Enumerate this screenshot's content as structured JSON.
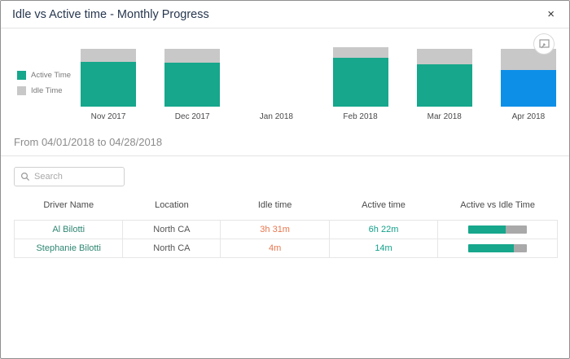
{
  "window": {
    "title": "Idle vs Active time - Monthly Progress",
    "close_glyph": "×"
  },
  "chart_data": {
    "type": "bar",
    "stacked": true,
    "categories": [
      "Nov 2017",
      "Dec 2017",
      "Jan 2018",
      "Feb 2018",
      "Mar 2018",
      "Apr 2018"
    ],
    "series": [
      {
        "name": "Active Time",
        "color": "#16a78c",
        "values": [
          55,
          54,
          0,
          60,
          52,
          45
        ]
      },
      {
        "name": "Idle Time",
        "color": "#c8c8c8",
        "values": [
          16,
          17,
          0,
          13,
          19,
          26
        ]
      }
    ],
    "unit": "relative-height",
    "note": "Jan 2018 has no bar; Apr 2018 active segment highlighted as selected",
    "selected_index": 5,
    "selected_color": "#0d8fe8",
    "legend_position": "left",
    "grid": false
  },
  "filter": {
    "date_range": "From 04/01/2018 to 04/28/2018"
  },
  "search": {
    "placeholder": "Search"
  },
  "table": {
    "columns": [
      "Driver Name",
      "Location",
      "Idle time",
      "Active time",
      "Active vs Idle Time"
    ],
    "rows": [
      {
        "driver": "Al Bilotti",
        "location": "North CA",
        "idle": "3h 31m",
        "active": "6h 22m",
        "active_pct": 64
      },
      {
        "driver": "Stephanie Bilotti",
        "location": "North CA",
        "idle": "4m",
        "active": "14m",
        "active_pct": 78
      }
    ]
  },
  "colors": {
    "teal": "#16a78c",
    "idle_gray": "#c8c8c8",
    "selected_blue": "#0d8fe8",
    "idle_text_orange": "#e8764e",
    "active_text_teal": "#12a08a",
    "driver_text": "#2e8672",
    "progress_gray": "#a9a9a9"
  }
}
